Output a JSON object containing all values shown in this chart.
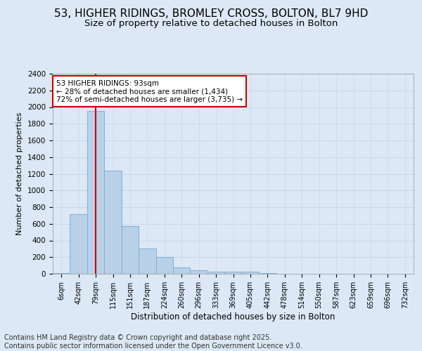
{
  "title": "53, HIGHER RIDINGS, BROMLEY CROSS, BOLTON, BL7 9HD",
  "subtitle": "Size of property relative to detached houses in Bolton",
  "xlabel": "Distribution of detached houses by size in Bolton",
  "ylabel": "Number of detached properties",
  "categories": [
    "6sqm",
    "42sqm",
    "79sqm",
    "115sqm",
    "151sqm",
    "187sqm",
    "224sqm",
    "260sqm",
    "296sqm",
    "333sqm",
    "369sqm",
    "405sqm",
    "442sqm",
    "478sqm",
    "514sqm",
    "550sqm",
    "587sqm",
    "623sqm",
    "659sqm",
    "696sqm",
    "732sqm"
  ],
  "values": [
    10,
    720,
    1950,
    1235,
    575,
    305,
    205,
    80,
    42,
    28,
    22,
    25,
    5,
    3,
    1,
    1,
    0,
    0,
    0,
    0,
    0
  ],
  "bar_color": "#b8d0e8",
  "bar_edge_color": "#7aaad0",
  "vline_x": 2,
  "vline_color": "#cc0000",
  "annotation_box_text": "53 HIGHER RIDINGS: 93sqm\n← 28% of detached houses are smaller (1,434)\n72% of semi-detached houses are larger (3,735) →",
  "annotation_box_color": "#cc0000",
  "annotation_box_fill": "#ffffff",
  "ylim": [
    0,
    2400
  ],
  "yticks": [
    0,
    200,
    400,
    600,
    800,
    1000,
    1200,
    1400,
    1600,
    1800,
    2000,
    2200,
    2400
  ],
  "grid_color": "#c8d8e8",
  "background_color": "#dce8f5",
  "plot_bg_color": "#dce8f5",
  "title_fontsize": 11,
  "subtitle_fontsize": 9.5,
  "footer_text": "Contains HM Land Registry data © Crown copyright and database right 2025.\nContains public sector information licensed under the Open Government Licence v3.0.",
  "footer_fontsize": 7
}
